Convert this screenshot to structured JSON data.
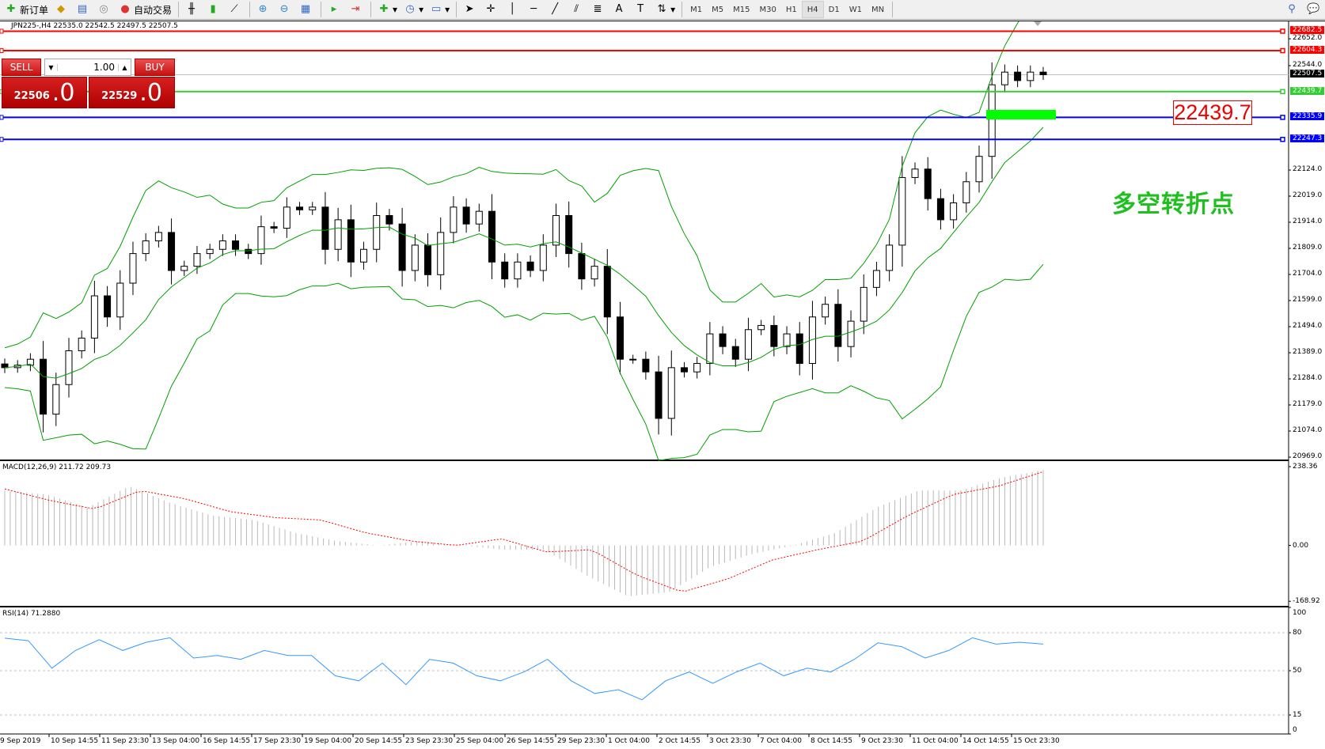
{
  "toolbar": {
    "new_order": "新订单",
    "auto_trading": "自动交易",
    "timeframes": [
      "M1",
      "M5",
      "M15",
      "M30",
      "H1",
      "H4",
      "D1",
      "W1",
      "MN"
    ],
    "selected_timeframe": "H4"
  },
  "chart": {
    "header": "JPN225-,H4  22535.0 22542.5 22497.5 22507.5",
    "trade": {
      "sell": "SELL",
      "buy": "BUY",
      "lot": "1.00",
      "bid_main": "22506",
      "bid_frac": ".0",
      "ask_main": "22529",
      "ask_frac": ".0"
    },
    "annotation": "多空转折点",
    "price_box": "22439.7",
    "colors": {
      "resistance": "#ff0000",
      "pivot": "#33cc33",
      "support": "#0000ff",
      "bands": "#00a000",
      "macd_signal": "#ff0000",
      "rsi": "#3399ff"
    },
    "levels": [
      {
        "price": 22682.5,
        "label": "22682.5",
        "kind": "resistance"
      },
      {
        "price": 22604.3,
        "label": "22604.3",
        "kind": "resistance"
      },
      {
        "price": 22439.7,
        "label": "22439.7",
        "kind": "pivot"
      },
      {
        "price": 22335.9,
        "label": "22335.9",
        "kind": "support"
      },
      {
        "price": 22247.3,
        "label": "22247.3",
        "kind": "support"
      }
    ],
    "bid_line": {
      "price": 22507.5,
      "label": "22507.5"
    },
    "price_ticks": [
      "22652.0",
      "22544.0",
      "22124.0",
      "22019.0",
      "21914.0",
      "21809.0",
      "21704.0",
      "21599.0",
      "21494.0",
      "21389.0",
      "21284.0",
      "21179.0",
      "21074.0",
      "20969.0"
    ],
    "closes": [
      21329,
      21339,
      21363,
      21142,
      21261,
      21397,
      21448,
      21618,
      21533,
      21669,
      21788,
      21839,
      21873,
      21720,
      21737,
      21788,
      21805,
      21839,
      21805,
      21788,
      21896,
      21890,
      21975,
      21964,
      21975,
      21805,
      21924,
      21754,
      21805,
      21941,
      21907,
      21720,
      21822,
      21703,
      21873,
      21975,
      21907,
      21958,
      21754,
      21686,
      21754,
      21720,
      21822,
      21941,
      21788,
      21686,
      21737,
      21533,
      21363,
      21363,
      21312,
      21125,
      21329,
      21312,
      21346,
      21465,
      21414,
      21363,
      21482,
      21499,
      21414,
      21465,
      21346,
      21533,
      21584,
      21414,
      21516,
      21652,
      21720,
      21822,
      22094,
      22128,
      22009,
      21924,
      21992,
      22077,
      22179,
      22467,
      22518,
      22484,
      22518,
      22507.5
    ]
  },
  "macd": {
    "label": "MACD(12,26,9) 211.72 209.73",
    "ticks": [
      "238.36",
      "0.00",
      "-168.92"
    ],
    "histogram": [
      166,
      154,
      115,
      179,
      128,
      90,
      77,
      38,
      13,
      0,
      13,
      0,
      -13,
      -13,
      -90,
      -154,
      -141,
      -64,
      -26,
      0,
      38,
      115,
      166,
      166,
      205,
      228
    ],
    "signal": [
      171,
      136,
      110,
      166,
      141,
      102,
      84,
      77,
      38,
      13,
      0,
      20,
      -20,
      -13,
      -90,
      -141,
      -102,
      -44,
      -13,
      13,
      90,
      154,
      179,
      223
    ]
  },
  "rsi": {
    "label": "RSI(14) 71.2880",
    "ticks": [
      "100",
      "80",
      "50",
      "15",
      "0"
    ],
    "values": [
      75.7,
      73.7,
      52,
      66,
      74.5,
      66,
      72.5,
      76,
      60,
      62,
      59,
      66,
      62,
      62,
      46,
      42,
      56,
      39,
      59,
      56,
      46,
      42,
      49,
      59,
      42,
      32,
      35,
      27,
      42,
      49,
      40,
      49,
      56,
      46,
      52,
      49,
      59,
      72,
      69,
      60,
      66,
      76,
      71,
      72.5,
      71
    ]
  },
  "time_labels": [
    "9 Sep 2019",
    "10 Sep 14:55",
    "11 Sep 23:30",
    "13 Sep 04:00",
    "16 Sep 14:55",
    "17 Sep 23:30",
    "19 Sep 04:00",
    "20 Sep 14:55",
    "23 Sep 23:30",
    "25 Sep 04:00",
    "26 Sep 14:55",
    "29 Sep 23:30",
    "1 Oct 04:00",
    "2 Oct 14:55",
    "3 Oct 23:30",
    "7 Oct 04:00",
    "8 Oct 14:55",
    "9 Oct 23:30",
    "11 Oct 04:00",
    "14 Oct 14:55",
    "15 Oct 23:30"
  ]
}
